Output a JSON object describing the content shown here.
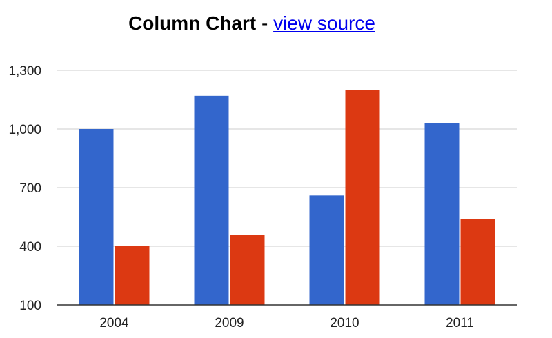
{
  "page": {
    "title_main": "Column Chart",
    "title_sep": " - ",
    "title_link": "view source"
  },
  "colors": {
    "series_blue": "#3366cc",
    "series_red": "#dc3912",
    "gridline": "#cccccc",
    "baseline": "#333333"
  },
  "chart_data": {
    "type": "bar",
    "title": "Column Chart",
    "categories": [
      "2004",
      "2009",
      "2010",
      "2011"
    ],
    "series": [
      {
        "color": "#3366cc",
        "values": [
          1000,
          1170,
          660,
          1030
        ]
      },
      {
        "color": "#dc3912",
        "values": [
          400,
          460,
          1200,
          540
        ]
      }
    ],
    "ylim": [
      100,
      1300
    ],
    "yticks": [
      "100",
      "400",
      "700",
      "1,000",
      "1,300"
    ],
    "ytick_values": [
      100,
      400,
      700,
      1000,
      1300
    ],
    "grid": true,
    "legend": "none"
  }
}
